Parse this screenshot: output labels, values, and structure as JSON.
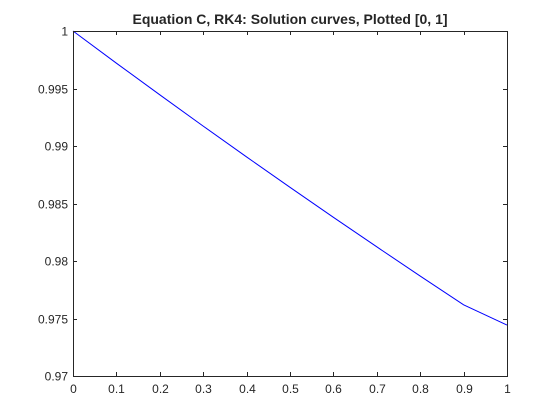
{
  "chart_data": {
    "type": "line",
    "title": "Equation C, RK4: Solution curves, Plotted [0, 1]",
    "xlabel": "",
    "ylabel": "",
    "xlim": [
      0,
      1
    ],
    "ylim": [
      0.97,
      1
    ],
    "x_ticks": [
      "0",
      "0.1",
      "0.2",
      "0.3",
      "0.4",
      "0.5",
      "0.6",
      "0.7",
      "0.8",
      "0.9",
      "1"
    ],
    "y_ticks": [
      "0.97",
      "0.975",
      "0.98",
      "0.985",
      "0.99",
      "0.995",
      "1"
    ],
    "grid": false,
    "box": true,
    "series": [
      {
        "color": "#0000ff",
        "x": [
          0,
          0.1,
          0.2,
          0.3,
          0.4,
          0.5,
          0.6,
          0.7,
          0.8,
          0.9,
          1.0
        ],
        "y": [
          1.0,
          0.9972,
          0.99445,
          0.99173,
          0.98905,
          0.98641,
          0.9838,
          0.98123,
          0.97869,
          0.97619,
          0.97443
        ]
      }
    ]
  }
}
